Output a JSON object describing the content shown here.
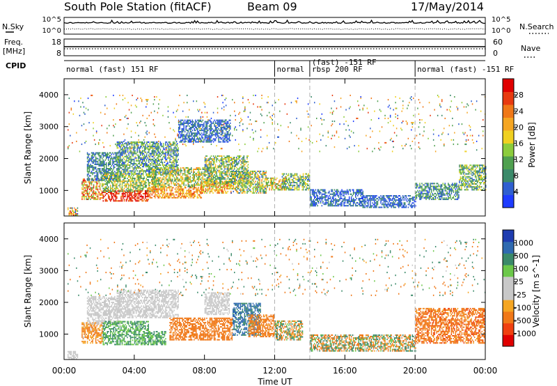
{
  "header": {
    "title": "South Pole Station (fitACF)",
    "beam": "Beam 09",
    "date": "17/May/2014"
  },
  "side_labels": {
    "nsky": "N.Sky",
    "freq": "Freq.",
    "freq_unit": "[MHz]",
    "cpid": "CPID",
    "nsearch": "N.Search",
    "nave": "Nave"
  },
  "noise_axis": {
    "left_ticks": [
      "10^5",
      "10^0"
    ],
    "right_ticks": [
      "10^5",
      "10^0"
    ]
  },
  "freq_axis": {
    "left_ticks": [
      "18",
      "8"
    ],
    "right_ticks": [
      "60",
      "0"
    ]
  },
  "cpid_segments": [
    {
      "start": 0,
      "end": 12,
      "label": "normal (fast) 151 RF",
      "label2": ""
    },
    {
      "start": 12,
      "end": 14,
      "label": "normal",
      "label2": ""
    },
    {
      "start": 14,
      "end": 20,
      "label": "(fast) -151 RF",
      "label2": "rbsp 200 RF"
    },
    {
      "start": 20,
      "end": 24,
      "label": "normal (fast) -151 RF",
      "label2": ""
    }
  ],
  "colors": {
    "power_scale": [
      "#1e3cff",
      "#2f5fd0",
      "#3b8a6a",
      "#4fa04f",
      "#8ccc3c",
      "#f0d020",
      "#f5a623",
      "#f07818",
      "#e83a10",
      "#e00000"
    ],
    "velocity_scale": [
      "#e00000",
      "#f04010",
      "#f07818",
      "#f5a623",
      "#c8c8c8",
      "#c8c8c8",
      "#6cc84a",
      "#3b8a6a",
      "#2f6ab0",
      "#1e3cb0"
    ],
    "ground_scatter": "#c8c8c8"
  },
  "chart_data": [
    {
      "type": "heatmap",
      "name": "power",
      "ylabel": "Slant Range [km]",
      "colorbar_label": "Power [dB]",
      "colorbar_ticks": [
        "4",
        "8",
        "12",
        "16",
        "20",
        "24",
        "28"
      ],
      "zrange": [
        0,
        30
      ],
      "xlim": [
        0,
        24
      ],
      "ylim": [
        200,
        4500
      ],
      "yticks": [
        1000,
        2000,
        3000,
        4000
      ],
      "dashed_lines": [
        12,
        14,
        20
      ],
      "regions": [
        {
          "t0": 0.2,
          "t1": 0.8,
          "r0": 200,
          "r1": 450,
          "z": [
            4,
            28
          ]
        },
        {
          "t0": 1.0,
          "t1": 2.2,
          "r0": 700,
          "r1": 1350,
          "z": [
            10,
            29
          ]
        },
        {
          "t0": 1.3,
          "t1": 3.2,
          "r0": 1300,
          "r1": 2200,
          "z": [
            2,
            12
          ]
        },
        {
          "t0": 2.2,
          "t1": 4.8,
          "r0": 650,
          "r1": 1000,
          "z": [
            22,
            30
          ]
        },
        {
          "t0": 2.2,
          "t1": 5.2,
          "r0": 950,
          "r1": 1500,
          "z": [
            6,
            20
          ]
        },
        {
          "t0": 3.0,
          "t1": 6.5,
          "r0": 1500,
          "r1": 2500,
          "z": [
            2,
            16
          ]
        },
        {
          "t0": 4.8,
          "t1": 7.8,
          "r0": 750,
          "r1": 1100,
          "z": [
            16,
            26
          ]
        },
        {
          "t0": 5.0,
          "t1": 8.5,
          "r0": 1100,
          "r1": 1700,
          "z": [
            6,
            22
          ]
        },
        {
          "t0": 6.5,
          "t1": 9.5,
          "r0": 2500,
          "r1": 3200,
          "z": [
            2,
            8
          ]
        },
        {
          "t0": 7.8,
          "t1": 9.5,
          "r0": 900,
          "r1": 1300,
          "z": [
            12,
            26
          ]
        },
        {
          "t0": 8.0,
          "t1": 10.5,
          "r0": 1200,
          "r1": 2100,
          "z": [
            4,
            20
          ]
        },
        {
          "t0": 9.5,
          "t1": 11.5,
          "r0": 900,
          "r1": 1600,
          "z": [
            4,
            22
          ]
        },
        {
          "t0": 11.5,
          "t1": 12.6,
          "r0": 1000,
          "r1": 1400,
          "z": [
            8,
            24
          ]
        },
        {
          "t0": 12.4,
          "t1": 14.0,
          "r0": 1000,
          "r1": 1500,
          "z": [
            4,
            18
          ]
        },
        {
          "t0": 14.0,
          "t1": 17.0,
          "r0": 500,
          "r1": 1000,
          "z": [
            2,
            8
          ]
        },
        {
          "t0": 17.0,
          "t1": 20.0,
          "r0": 450,
          "r1": 850,
          "z": [
            2,
            8
          ]
        },
        {
          "t0": 20.0,
          "t1": 22.5,
          "r0": 700,
          "r1": 1200,
          "z": [
            2,
            14
          ]
        },
        {
          "t0": 22.5,
          "t1": 24.0,
          "r0": 1000,
          "r1": 1800,
          "z": [
            4,
            18
          ]
        },
        {
          "t0": 0.2,
          "t1": 24.0,
          "r0": 2200,
          "r1": 4000,
          "z": [
            2,
            26
          ],
          "sparse": true
        }
      ]
    },
    {
      "type": "heatmap",
      "name": "velocity",
      "xlabel": "Time UT",
      "ylabel": "Slant Range [km]",
      "colorbar_label": "Velocity [m s^-1]",
      "colorbar_ticks": [
        "-1000",
        "-500",
        "-100",
        "-25",
        "25",
        "100",
        "500",
        "1000"
      ],
      "zrange": [
        -1200,
        1200
      ],
      "xlim": [
        0,
        24
      ],
      "ylim": [
        200,
        4500
      ],
      "xticks": [
        "00:00",
        "04:00",
        "08:00",
        "12:00",
        "16:00",
        "20:00",
        "00:00"
      ],
      "yticks": [
        1000,
        2000,
        3000,
        4000
      ],
      "dashed_lines": [
        12,
        14,
        20
      ],
      "regions": [
        {
          "t0": 0.2,
          "t1": 0.8,
          "r0": 200,
          "r1": 450,
          "z": "gs"
        },
        {
          "t0": 1.0,
          "t1": 2.2,
          "r0": 700,
          "r1": 1350,
          "z": [
            -200,
            -20
          ]
        },
        {
          "t0": 1.3,
          "t1": 3.2,
          "r0": 1300,
          "r1": 2200,
          "z": "gs"
        },
        {
          "t0": 2.2,
          "t1": 4.8,
          "r0": 650,
          "r1": 1400,
          "z": [
            60,
            150
          ]
        },
        {
          "t0": 3.0,
          "t1": 6.5,
          "r0": 1500,
          "r1": 2400,
          "z": "gs"
        },
        {
          "t0": 4.8,
          "t1": 5.8,
          "r0": 650,
          "r1": 1100,
          "z": [
            60,
            150
          ]
        },
        {
          "t0": 6.0,
          "t1": 9.6,
          "r0": 800,
          "r1": 1500,
          "z": [
            -500,
            -90
          ]
        },
        {
          "t0": 8.0,
          "t1": 9.4,
          "r0": 1600,
          "r1": 2300,
          "z": "gs"
        },
        {
          "t0": 9.6,
          "t1": 11.2,
          "r0": 950,
          "r1": 1950,
          "z": [
            200,
            1000
          ]
        },
        {
          "t0": 10.5,
          "t1": 12.0,
          "r0": 900,
          "r1": 1600,
          "z": [
            -400,
            -60
          ]
        },
        {
          "t0": 12.0,
          "t1": 13.6,
          "r0": 800,
          "r1": 1400,
          "z": [
            -300,
            300
          ]
        },
        {
          "t0": 14.0,
          "t1": 20.0,
          "r0": 450,
          "r1": 950,
          "z": [
            -400,
            400
          ]
        },
        {
          "t0": 20.0,
          "t1": 24.0,
          "r0": 700,
          "r1": 1800,
          "z": [
            -600,
            -60
          ]
        },
        {
          "t0": 0.2,
          "t1": 24.0,
          "r0": 2200,
          "r1": 4000,
          "z": [
            -500,
            400
          ],
          "sparse": true
        }
      ]
    }
  ]
}
